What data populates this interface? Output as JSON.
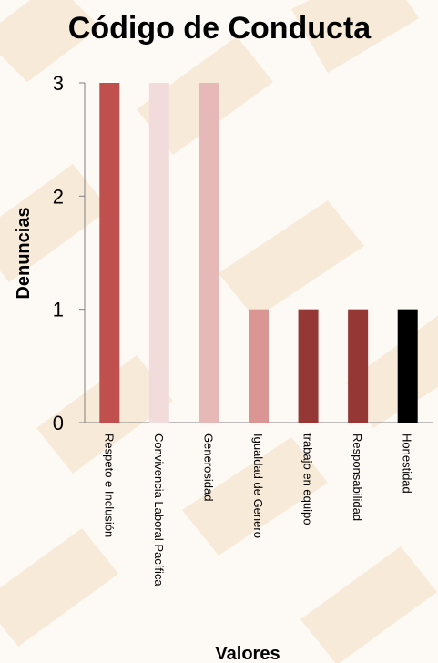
{
  "chart_data": {
    "type": "bar",
    "title": "Código de Conducta",
    "xlabel": "Valores",
    "ylabel": "Denuncias",
    "ylim": [
      0,
      3
    ],
    "yticks": [
      "0",
      "1",
      "2",
      "3"
    ],
    "grid": false,
    "legend": "none",
    "categories": [
      "Respeto e Inclusión",
      "Convivencia Laboral Pacífica",
      "Generosidad",
      "Igualdad de Genero",
      "trabajo en equipo",
      "Responsabilidad",
      "Honestidad"
    ],
    "values": [
      3,
      3,
      3,
      1,
      1,
      1,
      1
    ],
    "colors": [
      "#c0504d",
      "#f2dcdb",
      "#e6b9b8",
      "#d99694",
      "#953735",
      "#953735",
      "#000000"
    ]
  }
}
